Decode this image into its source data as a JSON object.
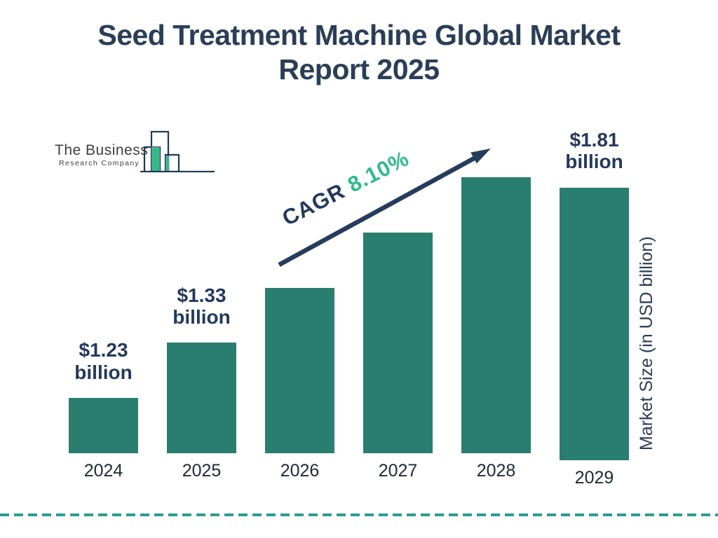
{
  "title": {
    "line1": "Seed Treatment Machine Global Market",
    "line2": "Report 2025"
  },
  "logo": {
    "company_line1": "The Business",
    "company_line2": "Research Company"
  },
  "annotation": {
    "cagr_label": "CAGR",
    "cagr_value": "8.10%"
  },
  "axis": {
    "y_label": "Market Size (in USD billion)"
  },
  "colors": {
    "bar": "#2a7e6f",
    "navy_text": "#2b3e57",
    "arrow": "#263c5c",
    "cagr_green": "#2fbc8b",
    "divider_teal": "#2a9d8f",
    "logo_outline": "#1d3a52",
    "logo_green": "#2ebd8a"
  },
  "chart_data": {
    "type": "bar",
    "title": "Seed Treatment Machine Global Market Report 2025",
    "categories": [
      "2024",
      "2025",
      "2026",
      "2027",
      "2028",
      "2029"
    ],
    "values": [
      1.23,
      1.33,
      null,
      null,
      null,
      1.81
    ],
    "unit": "USD billion",
    "value_labels": [
      [
        "$1.23",
        "billion"
      ],
      [
        "$1.33",
        "billion"
      ],
      null,
      null,
      null,
      [
        "$1.81",
        "billion"
      ]
    ],
    "bar_heights_relative": [
      1,
      2,
      3,
      4,
      5,
      6
    ],
    "cagr_percent": 8.1,
    "xlabel": "",
    "ylabel": "Market Size (in USD billion)",
    "legend": false,
    "grid": false
  }
}
